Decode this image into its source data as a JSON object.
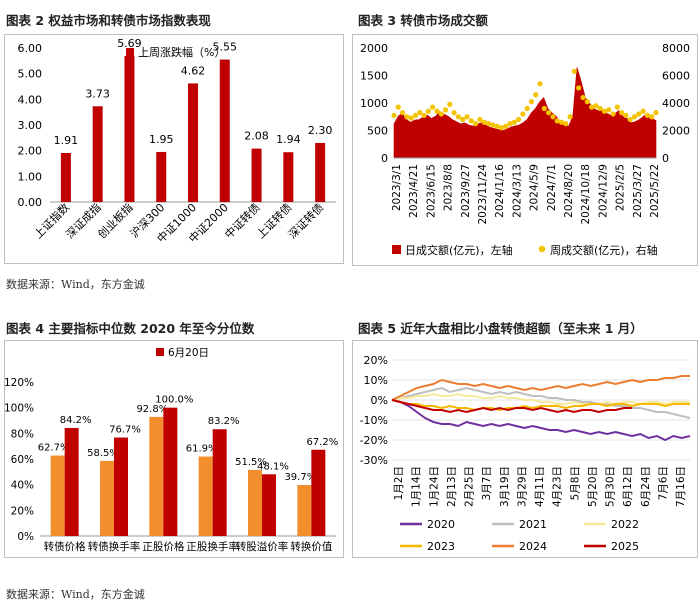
{
  "source_note": "数据来源：Wind，东方金诚",
  "chart_data": [
    {
      "id": "fig2",
      "type": "bar",
      "title": "图表 2  权益市场和转债市场指数表现",
      "legend": "上周涨跌幅（%）",
      "categories": [
        "上证指数",
        "深证成指",
        "创业板指",
        "沪深300",
        "中证1000",
        "中证2000",
        "中证转债",
        "上证转债",
        "深证转债"
      ],
      "values": [
        1.91,
        3.73,
        5.69,
        1.95,
        4.62,
        5.55,
        2.08,
        1.94,
        2.3
      ],
      "value_labels": [
        "1.91",
        "3.73",
        "5.69",
        "1.95",
        "4.62",
        "5.55",
        "2.08",
        "1.94",
        "2.30"
      ],
      "ylim": [
        0,
        6
      ],
      "yticks": [
        "0.00",
        "1.00",
        "2.00",
        "3.00",
        "4.00",
        "5.00",
        "6.00"
      ],
      "grid": false,
      "colors": {
        "bar": "#c00000"
      }
    },
    {
      "id": "fig3",
      "type": "area",
      "title": "图表 3  转债市场成交额",
      "ylim_left": [
        0,
        2000
      ],
      "ylim_right": [
        0,
        8000
      ],
      "yticks_left": [
        "0",
        "500",
        "1000",
        "1500",
        "2000"
      ],
      "yticks_right": [
        "0",
        "2000",
        "4000",
        "6000",
        "8000"
      ],
      "x_labels": [
        "2023/3/1",
        "2023/4/21",
        "2023/6/15",
        "2023/8/8",
        "2023/9/27",
        "2023/11/24",
        "2024/1/16",
        "2024/3/13",
        "2024/5/9",
        "2024/7/1",
        "2024/8/20",
        "2024/10/18",
        "2024/12/9",
        "2025/2/5",
        "2025/3/27",
        "2025/5/22"
      ],
      "series": [
        {
          "name": "日成交额(亿元)，左轴",
          "axis": "left",
          "values": [
            620,
            760,
            820,
            700,
            650,
            690,
            700,
            740,
            780,
            720,
            760,
            840,
            800,
            760,
            700,
            660,
            620,
            640,
            600,
            580,
            620,
            640,
            600,
            560,
            540,
            520,
            500,
            520,
            560,
            580,
            600,
            640,
            700,
            820,
            900,
            1020,
            1100,
            900,
            820,
            760,
            640,
            600,
            580,
            760,
            1650,
            1400,
            1100,
            1000,
            900,
            860,
            880,
            820,
            780,
            800,
            860,
            760,
            720,
            640,
            660,
            700,
            760,
            820,
            720,
            680
          ]
        },
        {
          "name": "周成交额(亿元)，右轴",
          "axis": "right",
          "values": [
            3100,
            3700,
            3300,
            3000,
            2900,
            3100,
            3300,
            3100,
            3400,
            3700,
            3400,
            3200,
            3500,
            3900,
            3300,
            3000,
            2800,
            3000,
            2700,
            2500,
            2800,
            2600,
            2500,
            2400,
            2300,
            2200,
            2300,
            2500,
            2600,
            2800,
            3200,
            3600,
            4100,
            4600,
            5400,
            3600,
            3300,
            3000,
            2700,
            2600,
            2500,
            3000,
            6300,
            5100,
            4400,
            4100,
            3700,
            3800,
            3600,
            3400,
            3500,
            3200,
            3700,
            3300,
            3100,
            2800,
            3000,
            3200,
            3400,
            3100,
            3000,
            3300
          ]
        }
      ],
      "colors": {
        "daily": "#c00000",
        "weekly": "#f5c400"
      }
    },
    {
      "id": "fig4",
      "type": "bar",
      "title": "图表 4  主要指标中位数 2020 年至今分位数",
      "categories": [
        "转债价格",
        "转债换手率",
        "正股价格",
        "正股换手率",
        "转股溢价率",
        "转换价值"
      ],
      "ylim": [
        0,
        120
      ],
      "yticks": [
        "0%",
        "20%",
        "40%",
        "60%",
        "80%",
        "100%",
        "120%"
      ],
      "series": [
        {
          "name": "",
          "color": "#f28e2b",
          "values": [
            62.7,
            58.5,
            92.8,
            61.9,
            51.5,
            39.7
          ],
          "labels": [
            "62.7%",
            "58.5%",
            "92.8%",
            "61.9%",
            "51.5%",
            "39.7%"
          ]
        },
        {
          "name": "6月20日",
          "color": "#c00000",
          "values": [
            84.2,
            76.7,
            100.0,
            83.2,
            48.1,
            67.2
          ],
          "labels": [
            "84.2%",
            "76.7%",
            "100.0%",
            "83.2%",
            "48.1%",
            "67.2%"
          ]
        }
      ],
      "legend": "6月20日",
      "grid": false
    },
    {
      "id": "fig5",
      "type": "line",
      "title": "图表 5  近年大盘相比小盘转债超额（至未来 1 月）",
      "ylim": [
        -30,
        20
      ],
      "yticks": [
        "20%",
        "10%",
        "0%",
        "-10%",
        "-20%",
        "-30%"
      ],
      "x_labels": [
        "1月2日",
        "1月14日",
        "1月24日",
        "2月13日",
        "2月25日",
        "3月7日",
        "3月19日",
        "3月29日",
        "4月11日",
        "4月23日",
        "5月8日",
        "5月20日",
        "5月30日",
        "6月12日",
        "6月24日",
        "7月6日",
        "7月16日"
      ],
      "grid": true,
      "series": [
        {
          "name": "2020",
          "color": "#7030a0",
          "values": [
            0,
            -1,
            -3,
            -6,
            -9,
            -11,
            -12,
            -12,
            -13,
            -11,
            -12,
            -13,
            -12,
            -13,
            -12,
            -13,
            -14,
            -13,
            -14,
            -15,
            -15,
            -16,
            -15,
            -16,
            -17,
            -16,
            -17,
            -16,
            -17,
            -18,
            -17,
            -19,
            -18,
            -20,
            -18,
            -19,
            -18
          ]
        },
        {
          "name": "2021",
          "color": "#bfbfbf",
          "values": [
            0,
            1,
            2,
            3,
            4,
            5,
            6,
            4,
            5,
            6,
            5,
            4,
            3,
            4,
            3,
            4,
            3,
            2,
            2,
            1,
            1,
            0,
            0,
            -1,
            -1,
            -2,
            -2,
            -3,
            -3,
            -4,
            -4,
            -5,
            -6,
            -6,
            -7,
            -8,
            -9
          ]
        },
        {
          "name": "2022",
          "color": "#f8e99a",
          "values": [
            0,
            1,
            1,
            2,
            2,
            3,
            2,
            2,
            3,
            2,
            2,
            1,
            1,
            2,
            1,
            1,
            0,
            0,
            -1,
            -1,
            -2,
            -2,
            -1,
            -2,
            -2,
            -2,
            -1,
            -2,
            -1,
            -1,
            -2,
            -1,
            -1,
            -2,
            -1,
            -1,
            -1
          ]
        },
        {
          "name": "2023",
          "color": "#f5b800",
          "values": [
            0,
            -1,
            -2,
            -2,
            -3,
            -3,
            -4,
            -3,
            -4,
            -4,
            -5,
            -4,
            -4,
            -5,
            -4,
            -4,
            -3,
            -4,
            -3,
            -3,
            -3,
            -4,
            -3,
            -3,
            -2,
            -2,
            -3,
            -2,
            -2,
            -3,
            -2,
            -2,
            -2,
            -3,
            -2,
            -2,
            -2
          ]
        },
        {
          "name": "2024",
          "color": "#ed7d31",
          "values": [
            0,
            2,
            4,
            6,
            7,
            8,
            10,
            9,
            8,
            8,
            7,
            8,
            7,
            6,
            7,
            6,
            5,
            6,
            5,
            6,
            7,
            6,
            7,
            8,
            7,
            8,
            9,
            8,
            9,
            10,
            9,
            10,
            10,
            11,
            11,
            12,
            12
          ]
        },
        {
          "name": "2025",
          "color": "#c00000",
          "values": [
            0,
            -1,
            -2,
            -3,
            -4,
            -5,
            -5,
            -6,
            -5,
            -6,
            -5,
            -4,
            -5,
            -4,
            -5,
            -4,
            -4,
            -5,
            -4,
            -5,
            -6,
            -5,
            -6,
            -5,
            -5,
            -6,
            -5,
            -5,
            -4,
            -4
          ]
        }
      ]
    }
  ]
}
